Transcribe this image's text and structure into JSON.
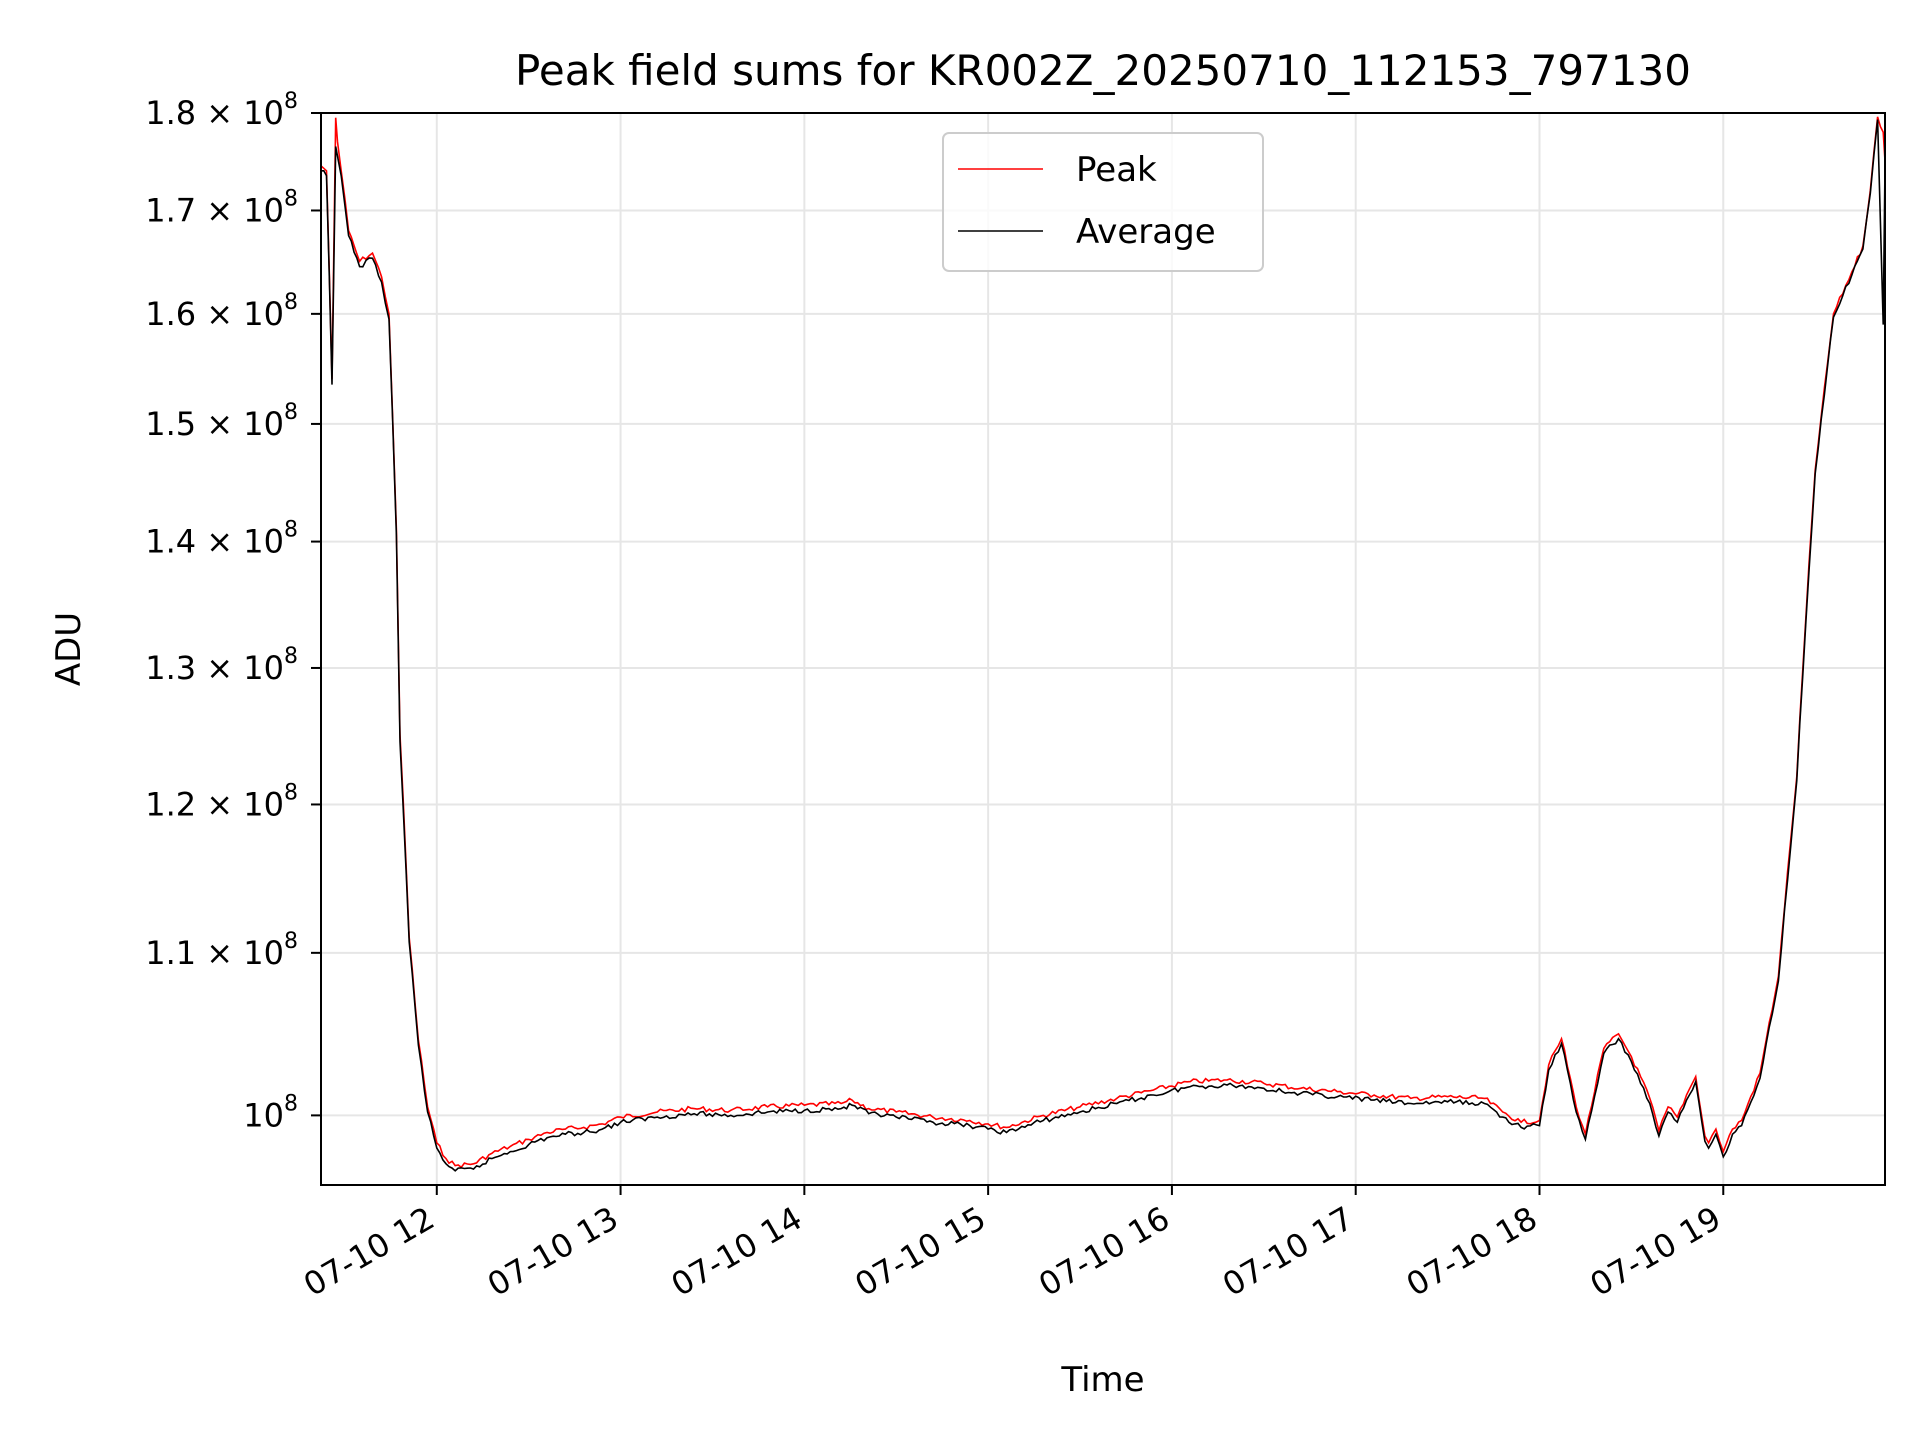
{
  "chart_data": {
    "type": "line",
    "title": "Peak field sums for KR002Z_20250710_112153_797130",
    "xlabel": "Time",
    "ylabel": "ADU",
    "y_scale": "log",
    "x_start": "07-10 11:22",
    "x_end": "07-10 19:52",
    "xlim_hours": [
      11.37,
      19.88
    ],
    "ylim": [
      96000000,
      180000000
    ],
    "grid": true,
    "legend_position": "top-center",
    "x_ticks": [
      {
        "value": 12,
        "label": "07-10 12"
      },
      {
        "value": 13,
        "label": "07-10 13"
      },
      {
        "value": 14,
        "label": "07-10 14"
      },
      {
        "value": 15,
        "label": "07-10 15"
      },
      {
        "value": 16,
        "label": "07-10 16"
      },
      {
        "value": 17,
        "label": "07-10 17"
      },
      {
        "value": 18,
        "label": "07-10 18"
      },
      {
        "value": 19,
        "label": "07-10 19"
      }
    ],
    "y_ticks": [
      {
        "value": 100000000,
        "base": "10",
        "exp": "8",
        "mant": ""
      },
      {
        "value": 110000000,
        "base": "1.1 × 10",
        "exp": "8",
        "mant": "1.1"
      },
      {
        "value": 120000000,
        "base": "1.2 × 10",
        "exp": "8",
        "mant": "1.2"
      },
      {
        "value": 130000000,
        "base": "1.3 × 10",
        "exp": "8",
        "mant": "1.3"
      },
      {
        "value": 140000000,
        "base": "1.4 × 10",
        "exp": "8",
        "mant": "1.4"
      },
      {
        "value": 150000000,
        "base": "1.5 × 10",
        "exp": "8",
        "mant": "1.5"
      },
      {
        "value": 160000000,
        "base": "1.6 × 10",
        "exp": "8",
        "mant": "1.6"
      },
      {
        "value": 170000000,
        "base": "1.7 × 10",
        "exp": "8",
        "mant": "1.7"
      },
      {
        "value": 180000000,
        "base": "1.8 × 10",
        "exp": "8",
        "mant": "1.8"
      }
    ],
    "series": [
      {
        "name": "Peak",
        "color": "#ff0000",
        "x": [
          11.37,
          11.4,
          11.43,
          11.45,
          11.46,
          11.48,
          11.52,
          11.58,
          11.65,
          11.7,
          11.74,
          11.78,
          11.8,
          11.85,
          11.9,
          11.95,
          12.0,
          12.05,
          12.1,
          12.2,
          12.3,
          12.4,
          12.5,
          12.6,
          12.7,
          12.8,
          12.9,
          13.0,
          13.2,
          13.4,
          13.6,
          13.8,
          14.0,
          14.2,
          14.26,
          14.35,
          14.5,
          14.7,
          14.9,
          15.0,
          15.1,
          15.3,
          15.5,
          15.7,
          15.9,
          16.1,
          16.3,
          16.5,
          16.7,
          16.9,
          17.1,
          17.3,
          17.5,
          17.7,
          17.8,
          17.9,
          18.0,
          18.05,
          18.12,
          18.2,
          18.25,
          18.35,
          18.43,
          18.5,
          18.6,
          18.65,
          18.7,
          18.75,
          18.8,
          18.85,
          18.9,
          18.92,
          18.96,
          19.0,
          19.05,
          19.1,
          19.2,
          19.3,
          19.4,
          19.5,
          19.6,
          19.7,
          19.76,
          19.8,
          19.82,
          19.84,
          19.87,
          19.88
        ],
        "values": [
          174500000,
          174000000,
          154000000,
          179500000,
          177000000,
          174000000,
          168000000,
          165000000,
          165800000,
          163500000,
          160000000,
          141000000,
          125000000,
          111000000,
          104500000,
          100500000,
          98400000,
          97500000,
          97100000,
          97200000,
          97800000,
          98200000,
          98600000,
          99000000,
          99200000,
          99300000,
          99500000,
          99900000,
          100200000,
          100400000,
          100300000,
          100500000,
          100600000,
          100700000,
          100900000,
          100400000,
          100200000,
          99900000,
          99700000,
          99500000,
          99300000,
          100000000,
          100500000,
          101000000,
          101500000,
          102000000,
          102100000,
          101900000,
          101600000,
          101400000,
          101200000,
          101000000,
          101100000,
          101000000,
          100200000,
          99600000,
          99700000,
          103000000,
          104600000,
          100500000,
          98900000,
          104000000,
          104900000,
          103500000,
          101000000,
          99100000,
          100500000,
          99900000,
          101200000,
          102300000,
          98800000,
          98400000,
          99200000,
          97900000,
          99200000,
          99700000,
          102500000,
          108500000,
          122000000,
          146000000,
          160000000,
          164000000,
          166500000,
          172000000,
          176000000,
          179600000,
          178000000,
          175000000
        ],
        "visible_peak_note": ""
      },
      {
        "name": "Average",
        "color": "#000000",
        "x": [
          11.37,
          11.4,
          11.43,
          11.45,
          11.46,
          11.48,
          11.52,
          11.58,
          11.65,
          11.7,
          11.74,
          11.78,
          11.8,
          11.85,
          11.9,
          11.95,
          12.0,
          12.05,
          12.1,
          12.2,
          12.3,
          12.4,
          12.5,
          12.6,
          12.7,
          12.8,
          12.9,
          13.0,
          13.2,
          13.4,
          13.6,
          13.8,
          14.0,
          14.2,
          14.26,
          14.35,
          14.5,
          14.7,
          14.9,
          15.0,
          15.1,
          15.3,
          15.5,
          15.7,
          15.9,
          16.1,
          16.3,
          16.5,
          16.7,
          16.9,
          17.1,
          17.3,
          17.5,
          17.7,
          17.8,
          17.9,
          18.0,
          18.05,
          18.12,
          18.2,
          18.25,
          18.35,
          18.43,
          18.5,
          18.6,
          18.65,
          18.7,
          18.75,
          18.8,
          18.85,
          18.9,
          18.92,
          18.96,
          19.0,
          19.05,
          19.1,
          19.2,
          19.3,
          19.4,
          19.5,
          19.6,
          19.7,
          19.76,
          19.8,
          19.82,
          19.84,
          19.87,
          19.88
        ],
        "values": [
          174000000,
          173500000,
          153500000,
          176500000,
          175500000,
          173500000,
          167500000,
          164500000,
          165300000,
          163000000,
          159500000,
          140500000,
          124500000,
          110700000,
          104200000,
          100200000,
          98100000,
          97200000,
          96800000,
          96900000,
          97500000,
          97900000,
          98300000,
          98700000,
          98900000,
          99000000,
          99200000,
          99600000,
          99900000,
          100100000,
          100000000,
          100200000,
          100300000,
          100400000,
          100600000,
          100100000,
          99900000,
          99600000,
          99400000,
          99200000,
          99000000,
          99700000,
          100200000,
          100700000,
          101200000,
          101700000,
          101800000,
          101600000,
          101300000,
          101100000,
          100900000,
          100700000,
          100800000,
          100700000,
          99900000,
          99300000,
          99400000,
          102700000,
          104300000,
          100200000,
          98600000,
          103700000,
          104600000,
          103200000,
          100700000,
          98800000,
          100200000,
          99600000,
          100900000,
          102000000,
          98500000,
          98100000,
          98900000,
          97600000,
          98900000,
          99400000,
          102200000,
          108200000,
          121700000,
          145700000,
          159700000,
          163700000,
          166200000,
          171700000,
          175700000,
          179300000,
          159000000,
          174500000
        ]
      }
    ]
  }
}
